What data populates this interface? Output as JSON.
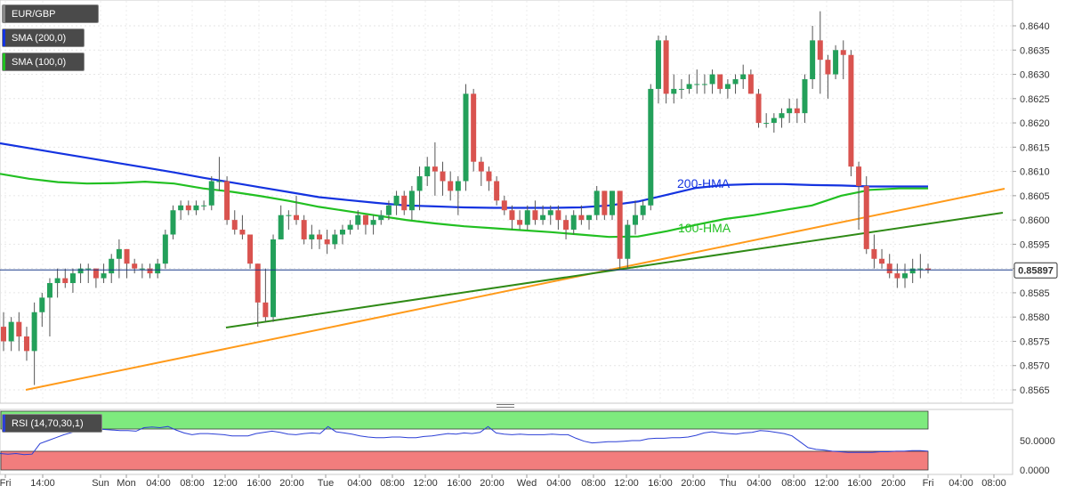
{
  "legend": {
    "symbol": "EUR/GBP",
    "sma200": "SMA (200,0)",
    "sma100": "SMA (100,0)",
    "rsi": "RSI (14,70,30,1)"
  },
  "colors": {
    "candle_up": "#23a05a",
    "candle_down": "#d9534f",
    "hma200": "#1433e0",
    "hma100": "#22c022",
    "support_orange": "#ff9a1a",
    "support_green": "#2f8a16",
    "rsi_line": "#2b3fd6",
    "rsi_overbought": "#7eea7e",
    "rsi_oversold": "#f27d7d",
    "price_line": "#1a3a8a"
  },
  "annotations": {
    "hma200": "200-HMA",
    "hma100": "100-HMA"
  },
  "current_price": "0.85897",
  "chart_data": [
    {
      "type": "candlestick",
      "title": "EUR/GBP",
      "ylim": [
        0.8562,
        0.8645
      ],
      "y_ticks": [
        "0.8640",
        "0.8635",
        "0.8630",
        "0.8625",
        "0.8620",
        "0.8615",
        "0.8610",
        "0.8605",
        "0.8600",
        "0.8595",
        "0.8590",
        "0.8585",
        "0.8580",
        "0.8575",
        "0.8570",
        "0.8565"
      ],
      "x_labels": [
        "Fri",
        "14:00",
        "Sun",
        "Mon",
        "04:00",
        "08:00",
        "12:00",
        "16:00",
        "20:00",
        "Tue",
        "04:00",
        "08:00",
        "12:00",
        "16:00",
        "20:00",
        "Wed",
        "04:00",
        "08:00",
        "12:00",
        "16:00",
        "20:00",
        "Thu",
        "04:00",
        "08:00",
        "12:00",
        "16:00",
        "20:00",
        "Fri",
        "04:00",
        "08:00"
      ],
      "last_price": 0.85897,
      "candles": [
        [
          0.8578,
          0.8581,
          0.8573,
          0.8575
        ],
        [
          0.8575,
          0.858,
          0.8573,
          0.8579
        ],
        [
          0.8579,
          0.8581,
          0.8573,
          0.8576
        ],
        [
          0.8576,
          0.8578,
          0.8571,
          0.8573
        ],
        [
          0.8573,
          0.8583,
          0.8566,
          0.8581
        ],
        [
          0.8581,
          0.8585,
          0.8578,
          0.8584
        ],
        [
          0.8584,
          0.8588,
          0.8576,
          0.8587
        ],
        [
          0.8587,
          0.859,
          0.8584,
          0.8588
        ],
        [
          0.8588,
          0.859,
          0.8586,
          0.8587
        ],
        [
          0.8587,
          0.859,
          0.8585,
          0.8589
        ],
        [
          0.8589,
          0.8591,
          0.8587,
          0.859
        ],
        [
          0.859,
          0.8591,
          0.8587,
          0.859
        ],
        [
          0.859,
          0.859,
          0.8586,
          0.8588
        ],
        [
          0.8588,
          0.8591,
          0.8587,
          0.8589
        ],
        [
          0.8589,
          0.8593,
          0.8587,
          0.8592
        ],
        [
          0.8592,
          0.8596,
          0.8588,
          0.8594
        ],
        [
          0.8594,
          0.8594,
          0.8588,
          0.8591
        ],
        [
          0.8591,
          0.8592,
          0.8589,
          0.859
        ],
        [
          0.859,
          0.8591,
          0.8588,
          0.859
        ],
        [
          0.859,
          0.8591,
          0.8588,
          0.8589
        ],
        [
          0.8589,
          0.8592,
          0.8588,
          0.8591
        ],
        [
          0.8591,
          0.8598,
          0.859,
          0.8597
        ],
        [
          0.8597,
          0.8603,
          0.8596,
          0.8602
        ],
        [
          0.8602,
          0.8604,
          0.86,
          0.8603
        ],
        [
          0.8603,
          0.8604,
          0.8601,
          0.8602
        ],
        [
          0.8602,
          0.8604,
          0.8601,
          0.8603
        ],
        [
          0.8603,
          0.8604,
          0.8602,
          0.8603
        ],
        [
          0.8603,
          0.8609,
          0.8602,
          0.8608
        ],
        [
          0.8608,
          0.8613,
          0.8606,
          0.8608
        ],
        [
          0.8608,
          0.8609,
          0.8599,
          0.86
        ],
        [
          0.86,
          0.8602,
          0.8597,
          0.8598
        ],
        [
          0.8598,
          0.8601,
          0.8596,
          0.8597
        ],
        [
          0.8597,
          0.8597,
          0.859,
          0.8591
        ],
        [
          0.8591,
          0.8591,
          0.8578,
          0.8583
        ],
        [
          0.8583,
          0.859,
          0.8579,
          0.858
        ],
        [
          0.858,
          0.8597,
          0.8579,
          0.8596
        ],
        [
          0.8596,
          0.8603,
          0.8596,
          0.8601
        ],
        [
          0.8601,
          0.8602,
          0.8598,
          0.8601
        ],
        [
          0.8601,
          0.8605,
          0.8599,
          0.86
        ],
        [
          0.86,
          0.8601,
          0.8595,
          0.8596
        ],
        [
          0.8596,
          0.8599,
          0.8594,
          0.8597
        ],
        [
          0.8597,
          0.8598,
          0.8594,
          0.8596
        ],
        [
          0.8596,
          0.8598,
          0.8593,
          0.8595
        ],
        [
          0.8595,
          0.8598,
          0.8594,
          0.8597
        ],
        [
          0.8597,
          0.8599,
          0.8595,
          0.8598
        ],
        [
          0.8598,
          0.86,
          0.8597,
          0.8599
        ],
        [
          0.8599,
          0.8602,
          0.8598,
          0.8601
        ],
        [
          0.8601,
          0.8601,
          0.8597,
          0.8599
        ],
        [
          0.8599,
          0.8601,
          0.8597,
          0.86
        ],
        [
          0.86,
          0.8602,
          0.8599,
          0.8601
        ],
        [
          0.8601,
          0.8604,
          0.86,
          0.8603
        ],
        [
          0.8603,
          0.8606,
          0.8601,
          0.8605
        ],
        [
          0.8605,
          0.8606,
          0.8601,
          0.8602
        ],
        [
          0.8602,
          0.8607,
          0.86,
          0.8606
        ],
        [
          0.8606,
          0.8611,
          0.8602,
          0.8609
        ],
        [
          0.8609,
          0.8613,
          0.8607,
          0.8611
        ],
        [
          0.8611,
          0.8616,
          0.8605,
          0.861
        ],
        [
          0.861,
          0.8612,
          0.8605,
          0.8608
        ],
        [
          0.8608,
          0.861,
          0.8604,
          0.8606
        ],
        [
          0.8606,
          0.8609,
          0.8601,
          0.8608
        ],
        [
          0.8608,
          0.8628,
          0.8606,
          0.8626
        ],
        [
          0.8626,
          0.8627,
          0.861,
          0.8612
        ],
        [
          0.8612,
          0.8613,
          0.8607,
          0.861
        ],
        [
          0.861,
          0.8611,
          0.8606,
          0.8608
        ],
        [
          0.8608,
          0.8609,
          0.8603,
          0.8604
        ],
        [
          0.8604,
          0.8605,
          0.8601,
          0.8602
        ],
        [
          0.8602,
          0.8603,
          0.8598,
          0.86
        ],
        [
          0.86,
          0.8602,
          0.8598,
          0.8599
        ],
        [
          0.8599,
          0.8603,
          0.8598,
          0.8602
        ],
        [
          0.8602,
          0.8604,
          0.8599,
          0.86
        ],
        [
          0.86,
          0.8603,
          0.8599,
          0.8601
        ],
        [
          0.8601,
          0.8603,
          0.8599,
          0.8602
        ],
        [
          0.8602,
          0.8603,
          0.8598,
          0.86
        ],
        [
          0.86,
          0.8601,
          0.8596,
          0.8598
        ],
        [
          0.8598,
          0.8602,
          0.8597,
          0.8601
        ],
        [
          0.8601,
          0.8603,
          0.8599,
          0.86
        ],
        [
          0.86,
          0.8601,
          0.8598,
          0.8601
        ],
        [
          0.8601,
          0.8607,
          0.86,
          0.8606
        ],
        [
          0.8606,
          0.8606,
          0.86,
          0.8601
        ],
        [
          0.8601,
          0.8606,
          0.86,
          0.8606
        ],
        [
          0.8606,
          0.8606,
          0.859,
          0.8592
        ],
        [
          0.8592,
          0.86,
          0.859,
          0.8599
        ],
        [
          0.8599,
          0.8604,
          0.8597,
          0.8601
        ],
        [
          0.8601,
          0.8604,
          0.86,
          0.8603
        ],
        [
          0.8603,
          0.8628,
          0.8602,
          0.8627
        ],
        [
          0.8627,
          0.8638,
          0.8624,
          0.8637
        ],
        [
          0.8637,
          0.8638,
          0.8624,
          0.8626
        ],
        [
          0.8626,
          0.863,
          0.8624,
          0.8627
        ],
        [
          0.8627,
          0.8629,
          0.8625,
          0.8627
        ],
        [
          0.8627,
          0.863,
          0.8626,
          0.8628
        ],
        [
          0.8628,
          0.8631,
          0.8626,
          0.8628
        ],
        [
          0.8628,
          0.863,
          0.8626,
          0.8628
        ],
        [
          0.8628,
          0.8631,
          0.8626,
          0.863
        ],
        [
          0.863,
          0.863,
          0.8626,
          0.8627
        ],
        [
          0.8627,
          0.8629,
          0.8625,
          0.8628
        ],
        [
          0.8628,
          0.863,
          0.8626,
          0.8629
        ],
        [
          0.8629,
          0.8632,
          0.8627,
          0.863
        ],
        [
          0.863,
          0.8631,
          0.8626,
          0.8626
        ],
        [
          0.8626,
          0.8627,
          0.8619,
          0.862
        ],
        [
          0.862,
          0.8622,
          0.8619,
          0.862
        ],
        [
          0.862,
          0.8622,
          0.8618,
          0.8621
        ],
        [
          0.8621,
          0.8623,
          0.8619,
          0.8622
        ],
        [
          0.8622,
          0.8625,
          0.862,
          0.8623
        ],
        [
          0.8623,
          0.8625,
          0.862,
          0.8622
        ],
        [
          0.8622,
          0.863,
          0.862,
          0.8629
        ],
        [
          0.8629,
          0.864,
          0.8627,
          0.8637
        ],
        [
          0.8637,
          0.8643,
          0.8626,
          0.8633
        ],
        [
          0.8633,
          0.8634,
          0.8625,
          0.863
        ],
        [
          0.863,
          0.8636,
          0.8629,
          0.8635
        ],
        [
          0.8635,
          0.8637,
          0.8629,
          0.8634
        ],
        [
          0.8634,
          0.8635,
          0.8609,
          0.8611
        ],
        [
          0.8611,
          0.8612,
          0.8598,
          0.8607
        ],
        [
          0.8607,
          0.8609,
          0.8593,
          0.8594
        ],
        [
          0.8594,
          0.8597,
          0.859,
          0.8592
        ],
        [
          0.8592,
          0.8594,
          0.859,
          0.8591
        ],
        [
          0.8591,
          0.8593,
          0.8588,
          0.8589
        ],
        [
          0.8589,
          0.8591,
          0.8586,
          0.8588
        ],
        [
          0.8588,
          0.8591,
          0.8586,
          0.8589
        ],
        [
          0.8589,
          0.8592,
          0.8587,
          0.859
        ],
        [
          0.859,
          0.8593,
          0.8588,
          0.859
        ],
        [
          0.859,
          0.8591,
          0.8589,
          0.85897
        ]
      ],
      "series": [
        {
          "name": "200-HMA",
          "values": [
            0.86158,
            0.86148,
            0.86138,
            0.86128,
            0.86118,
            0.86108,
            0.86098,
            0.86087,
            0.86077,
            0.86067,
            0.86057,
            0.86047,
            0.86041,
            0.86035,
            0.8603,
            0.86028,
            0.86026,
            0.86025,
            0.86025,
            0.86025,
            0.86026,
            0.8603,
            0.86038,
            0.86052,
            0.86066,
            0.86072,
            0.86074,
            0.86074,
            0.86072,
            0.86071,
            0.86069,
            0.86069,
            0.86069
          ]
        },
        {
          "name": "100-HMA",
          "values": [
            0.86095,
            0.86085,
            0.86078,
            0.86075,
            0.86076,
            0.86079,
            0.86075,
            0.86065,
            0.86058,
            0.86049,
            0.86039,
            0.86027,
            0.86018,
            0.86009,
            0.86,
            0.85993,
            0.85987,
            0.85983,
            0.85979,
            0.85975,
            0.8597,
            0.85965,
            0.85966,
            0.85977,
            0.8599,
            0.86002,
            0.8601,
            0.8602,
            0.8603,
            0.8605,
            0.86062,
            0.86065,
            0.86065
          ]
        }
      ],
      "annotations": [
        "200-HMA",
        "100-HMA"
      ]
    },
    {
      "type": "line",
      "title": "RSI (14,70,30,1)",
      "ylim": [
        -6,
        100
      ],
      "y_ticks": [
        "50.0000",
        "0.0000"
      ],
      "bands": {
        "overbought": [
          70,
          100
        ],
        "oversold": [
          0,
          30
        ]
      },
      "series": [
        {
          "name": "RSI",
          "values": [
            28,
            27,
            28,
            26,
            27,
            45,
            50,
            55,
            60,
            64,
            67,
            71,
            70,
            69,
            68,
            67,
            67,
            66,
            72,
            73,
            72,
            74,
            68,
            63,
            60,
            62,
            62,
            61,
            60,
            58,
            58,
            58,
            62,
            64,
            66,
            64,
            61,
            60,
            62,
            63,
            62,
            74,
            65,
            63,
            61,
            58,
            56,
            55,
            55,
            56,
            56,
            55,
            55,
            57,
            58,
            60,
            62,
            61,
            63,
            62,
            64,
            74,
            63,
            61,
            60,
            61,
            60,
            60,
            60,
            61,
            60,
            60,
            54,
            49,
            46,
            47,
            48,
            48,
            49,
            50,
            50,
            53,
            54,
            54,
            55,
            55,
            56,
            59,
            63,
            65,
            63,
            62,
            61,
            63,
            64,
            67,
            66,
            64,
            62,
            58,
            48,
            38,
            35,
            34,
            32,
            31,
            30,
            30,
            30,
            30,
            31,
            31,
            32,
            32,
            33,
            33,
            32
          ]
        }
      ]
    }
  ]
}
